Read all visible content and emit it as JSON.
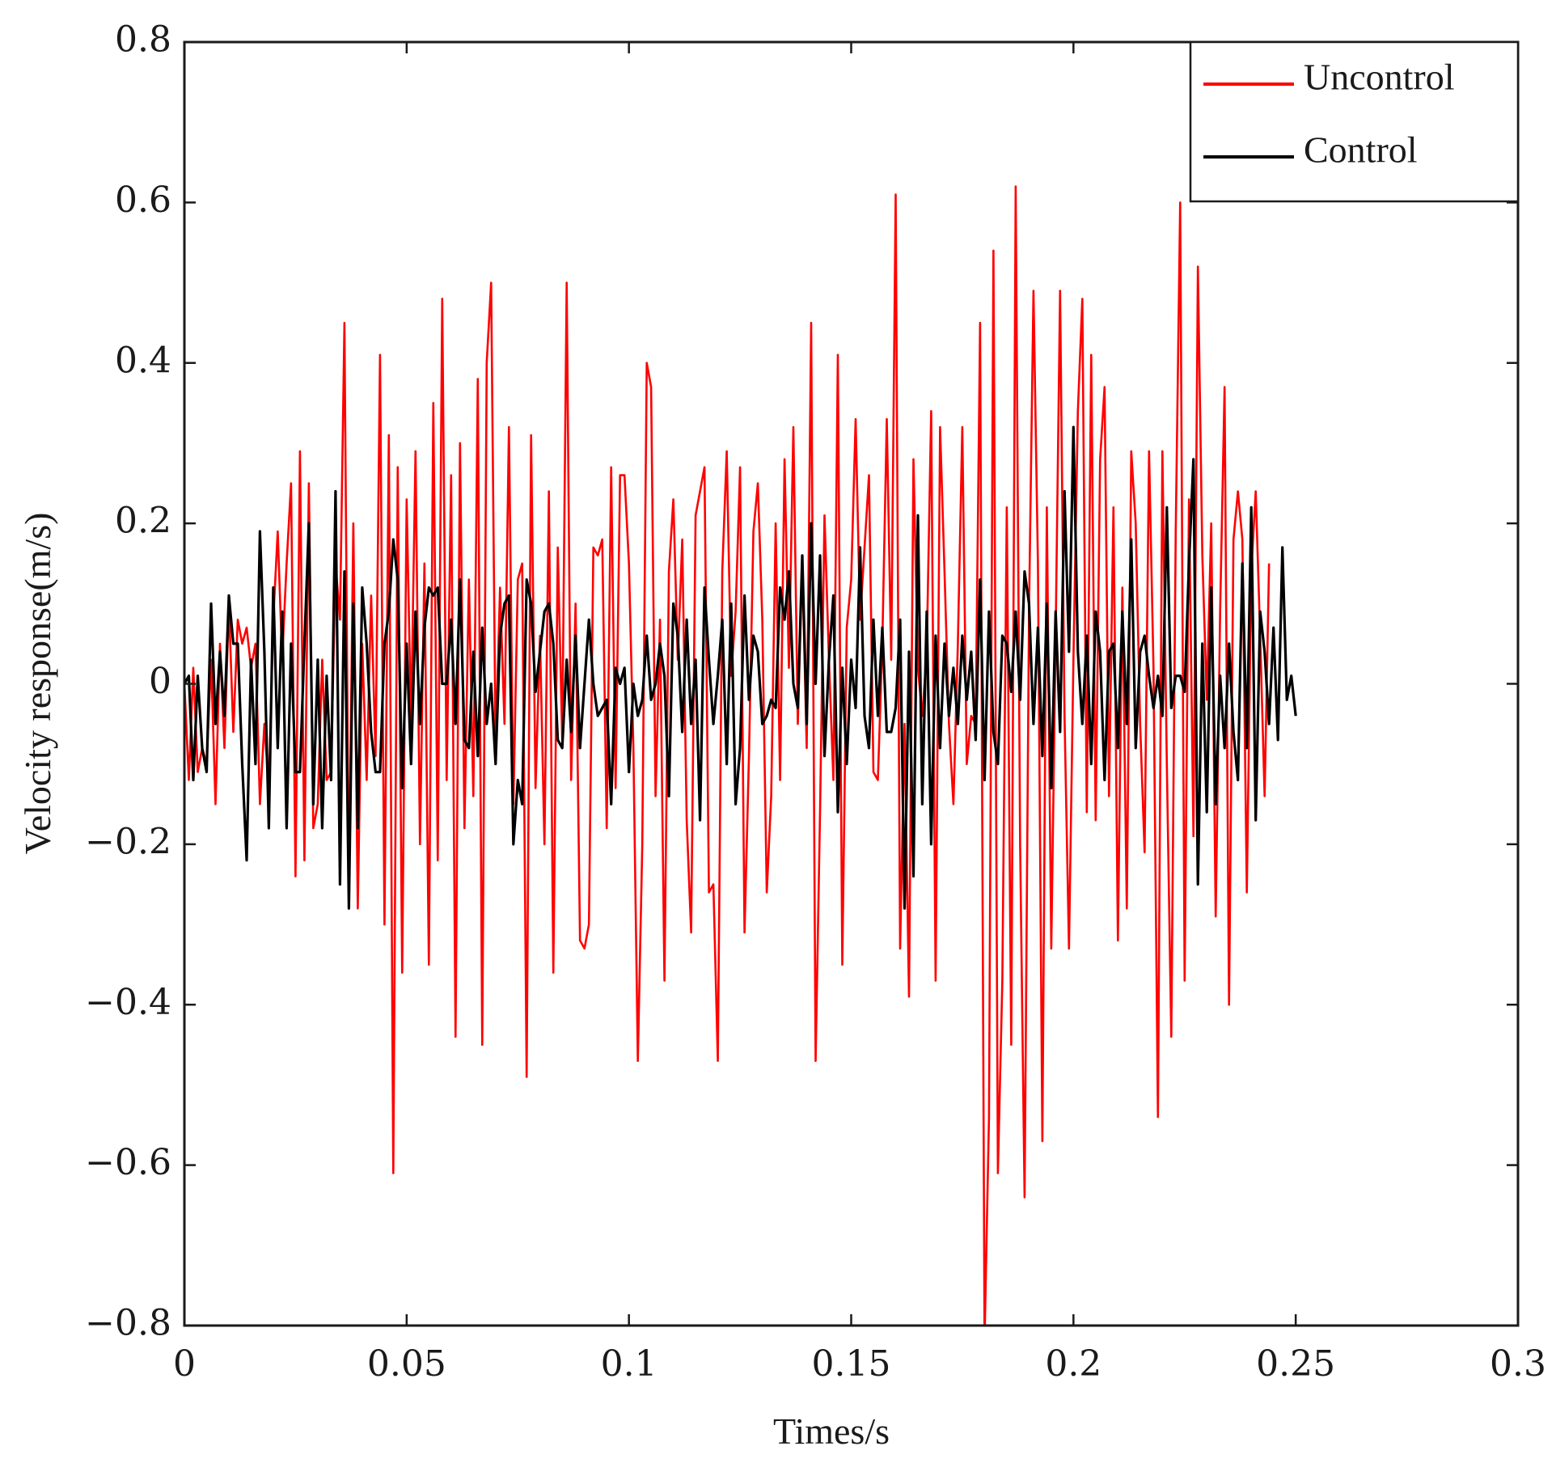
{
  "chart_data": {
    "type": "line",
    "title": "",
    "xlabel": "Times/s",
    "ylabel": "Velocity response(m/s)",
    "xlim": [
      0,
      0.3
    ],
    "ylim": [
      -0.8,
      0.8
    ],
    "x_ticks": [
      0,
      0.05,
      0.1,
      0.15,
      0.2,
      0.25,
      0.3
    ],
    "x_tick_labels": [
      "0",
      "0.05",
      "0.1",
      "0.15",
      "0.2",
      "0.25",
      "0.3"
    ],
    "y_ticks": [
      -0.8,
      -0.6,
      -0.4,
      -0.2,
      0,
      0.2,
      0.4,
      0.6,
      0.8
    ],
    "y_tick_labels": [
      "−0.8",
      "−0.6",
      "−0.4",
      "−0.2",
      "0",
      "0.2",
      "0.4",
      "0.6",
      "0.8"
    ],
    "grid": false,
    "box": true,
    "legend_position": "top-right",
    "x_step": 0.001,
    "series": [
      {
        "name": "Uncontrol",
        "color": "#ff0000",
        "values": [
          0,
          -0.12,
          0.02,
          -0.11,
          -0.08,
          -0.1,
          0.03,
          -0.15,
          0.05,
          -0.08,
          0.1,
          -0.06,
          0.08,
          0.05,
          0.07,
          0.02,
          0.05,
          -0.15,
          -0.05,
          -0.13,
          0.08,
          0.19,
          0.03,
          0.15,
          0.25,
          -0.24,
          0.29,
          -0.22,
          0.25,
          -0.18,
          -0.15,
          0.03,
          -0.12,
          -0.11,
          0.15,
          0.08,
          0.45,
          -0.26,
          0.2,
          -0.28,
          0.05,
          -0.12,
          0.11,
          -0.09,
          0.41,
          -0.3,
          0.31,
          -0.61,
          0.27,
          -0.36,
          0.23,
          -0.05,
          0.29,
          -0.2,
          0.15,
          -0.35,
          0.35,
          -0.22,
          0.48,
          -0.12,
          0.26,
          -0.44,
          0.3,
          -0.18,
          0.13,
          -0.14,
          0.38,
          -0.45,
          0.4,
          0.5,
          -0.08,
          0.12,
          -0.05,
          0.32,
          -0.15,
          0.13,
          0.15,
          -0.49,
          0.31,
          -0.13,
          0.06,
          -0.2,
          0.24,
          -0.36,
          0.17,
          -0.07,
          0.5,
          -0.12,
          0.1,
          -0.32,
          -0.33,
          -0.3,
          0.17,
          0.16,
          0.18,
          -0.18,
          0.27,
          -0.13,
          0.26,
          0.26,
          0.15,
          -0.08,
          -0.47,
          -0.2,
          0.4,
          0.37,
          -0.14,
          0.08,
          -0.37,
          0.14,
          0.23,
          0.03,
          0.18,
          -0.17,
          -0.31,
          0.21,
          0.24,
          0.27,
          -0.26,
          -0.25,
          -0.47,
          0.14,
          0.29,
          0.01,
          0.09,
          0.27,
          -0.31,
          -0.09,
          0.19,
          0.25,
          0.08,
          -0.26,
          -0.14,
          0.2,
          -0.12,
          0.28,
          0.02,
          0.32,
          -0.05,
          0.15,
          -0.08,
          0.45,
          -0.47,
          -0.16,
          0.21,
          0.03,
          -0.12,
          0.41,
          -0.35,
          0.07,
          0.13,
          0.33,
          0.08,
          0.17,
          0.26,
          -0.11,
          -0.12,
          0.05,
          0.33,
          0.03,
          0.61,
          -0.33,
          -0.05,
          -0.39,
          0.28,
          0.02,
          -0.04,
          0.04,
          0.34,
          -0.37,
          0.32,
          0.14,
          -0.05,
          -0.15,
          0.05,
          0.32,
          -0.1,
          -0.04,
          -0.05,
          0.45,
          -0.82,
          -0.54,
          0.54,
          -0.61,
          -0.37,
          0.22,
          -0.45,
          0.62,
          -0.2,
          -0.64,
          0.09,
          0.49,
          0.15,
          -0.57,
          0.22,
          -0.33,
          0.06,
          0.49,
          -0.04,
          -0.33,
          0.03,
          0.34,
          0.48,
          -0.16,
          0.41,
          -0.17,
          0.28,
          0.37,
          -0.14,
          0.22,
          -0.32,
          0.12,
          -0.28,
          0.29,
          0.2,
          -0.05,
          -0.21,
          0.29,
          0.02,
          -0.54,
          0.29,
          -0.1,
          -0.44,
          0.19,
          0.6,
          -0.37,
          0.23,
          -0.19,
          0.52,
          0.16,
          -0.02,
          0.2,
          -0.29,
          0.09,
          0.37,
          -0.4,
          0.18,
          0.24,
          0.18,
          -0.26,
          0.14,
          0.24,
          0.06,
          -0.14,
          0.15
        ]
      },
      {
        "name": "Control",
        "color": "#000000",
        "values": [
          0,
          0.01,
          -0.12,
          0.01,
          -0.08,
          -0.11,
          0.1,
          -0.05,
          0.04,
          -0.04,
          0.11,
          0.05,
          0.05,
          -0.1,
          -0.22,
          0.03,
          -0.1,
          0.19,
          0.04,
          -0.18,
          0.12,
          -0.08,
          0.09,
          -0.18,
          0.05,
          -0.11,
          -0.11,
          0.05,
          0.2,
          -0.15,
          0.03,
          -0.18,
          0.01,
          -0.12,
          0.24,
          -0.25,
          0.14,
          -0.28,
          0.1,
          -0.18,
          0.12,
          0.05,
          -0.06,
          -0.11,
          -0.11,
          0.05,
          0.09,
          0.18,
          0.13,
          -0.13,
          0.05,
          -0.1,
          0.09,
          -0.05,
          0.07,
          0.12,
          0.11,
          0.12,
          0.0,
          0.0,
          0.08,
          -0.05,
          0.13,
          -0.07,
          -0.08,
          0.04,
          -0.09,
          0.07,
          -0.05,
          0.0,
          -0.1,
          0.06,
          0.1,
          0.11,
          -0.2,
          -0.12,
          -0.15,
          0.13,
          0.1,
          -0.01,
          0.04,
          0.09,
          0.1,
          0.05,
          -0.07,
          -0.08,
          0.03,
          -0.06,
          0.06,
          -0.08,
          0.0,
          0.08,
          0.0,
          -0.04,
          -0.03,
          -0.02,
          -0.15,
          0.02,
          0.0,
          0.02,
          -0.11,
          0.0,
          -0.04,
          -0.02,
          0.06,
          -0.02,
          0.0,
          0.05,
          0.01,
          -0.14,
          0.1,
          0.06,
          -0.06,
          0.08,
          -0.05,
          0.03,
          -0.17,
          0.12,
          0.03,
          -0.05,
          0.01,
          0.08,
          -0.1,
          0.1,
          -0.15,
          -0.08,
          0.11,
          -0.02,
          0.06,
          0.04,
          -0.05,
          -0.04,
          -0.02,
          -0.03,
          0.12,
          0.08,
          0.14,
          0.0,
          -0.03,
          0.16,
          -0.05,
          0.2,
          0.0,
          0.16,
          -0.09,
          0.03,
          0.11,
          -0.16,
          0.02,
          -0.1,
          0.03,
          -0.03,
          0.17,
          -0.04,
          -0.08,
          0.08,
          -0.04,
          0.07,
          -0.06,
          -0.06,
          -0.03,
          0.08,
          -0.28,
          0.04,
          -0.24,
          0.21,
          -0.15,
          0.09,
          -0.2,
          0.06,
          -0.08,
          0.05,
          -0.04,
          0.02,
          -0.05,
          0.06,
          -0.02,
          0.04,
          -0.07,
          0.13,
          -0.12,
          0.09,
          -0.06,
          -0.1,
          0.06,
          0.05,
          -0.01,
          0.09,
          -0.02,
          0.14,
          0.1,
          -0.05,
          0.07,
          -0.09,
          0.1,
          -0.13,
          0.09,
          -0.06,
          0.24,
          0.04,
          0.32,
          0.04,
          -0.05,
          0.06,
          -0.1,
          0.09,
          0.04,
          -0.12,
          0.04,
          0.05,
          -0.08,
          0.09,
          -0.05,
          0.18,
          -0.08,
          0.04,
          0.06,
          0.01,
          -0.03,
          0.01,
          -0.04,
          0.22,
          -0.03,
          0.01,
          0.01,
          -0.01,
          0.15,
          0.28,
          -0.25,
          0.05,
          -0.16,
          0.12,
          -0.15,
          0.01,
          -0.08,
          0.05,
          -0.06,
          -0.12,
          0.15,
          -0.08,
          0.22,
          -0.17,
          0.09,
          0.04,
          -0.05,
          0.07,
          -0.07,
          0.17,
          -0.02,
          0.01,
          -0.04
        ]
      }
    ]
  }
}
